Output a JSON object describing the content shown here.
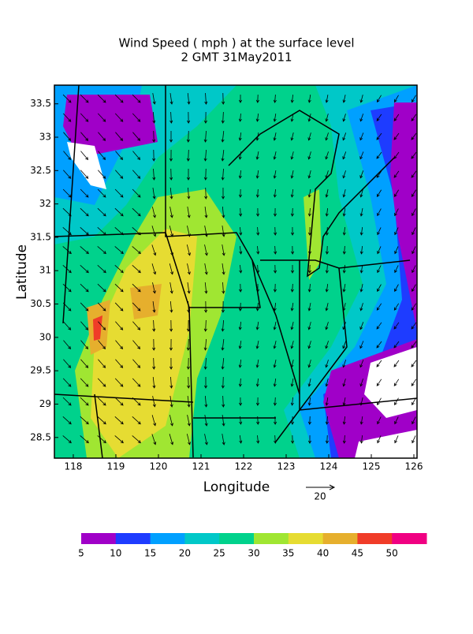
{
  "title": [
    "Wind Speed ( mph ) at the surface level",
    "2 GMT 31May2011"
  ],
  "map": {
    "xlabel": "Longitude",
    "ylabel": "Latitude",
    "xlim": [
      117.556,
      126.074
    ],
    "ylim": [
      28.19,
      33.78
    ],
    "xticks": [
      118,
      119,
      120,
      121,
      122,
      123,
      124,
      125,
      126
    ],
    "yticks": [
      28.5,
      29,
      29.5,
      30,
      30.5,
      31,
      31.5,
      32,
      32.5,
      33,
      33.5
    ]
  },
  "vector_key": {
    "label": "20"
  },
  "colorbar": {
    "levels": [
      5,
      10,
      15,
      20,
      25,
      30,
      35,
      40,
      45,
      50
    ],
    "colors": [
      "#a000c8",
      "#1e3cff",
      "#00a0ff",
      "#00c8c8",
      "#00d28c",
      "#a0e632",
      "#e6dc32",
      "#e6af2d",
      "#f03c28",
      "#f00082"
    ]
  }
}
